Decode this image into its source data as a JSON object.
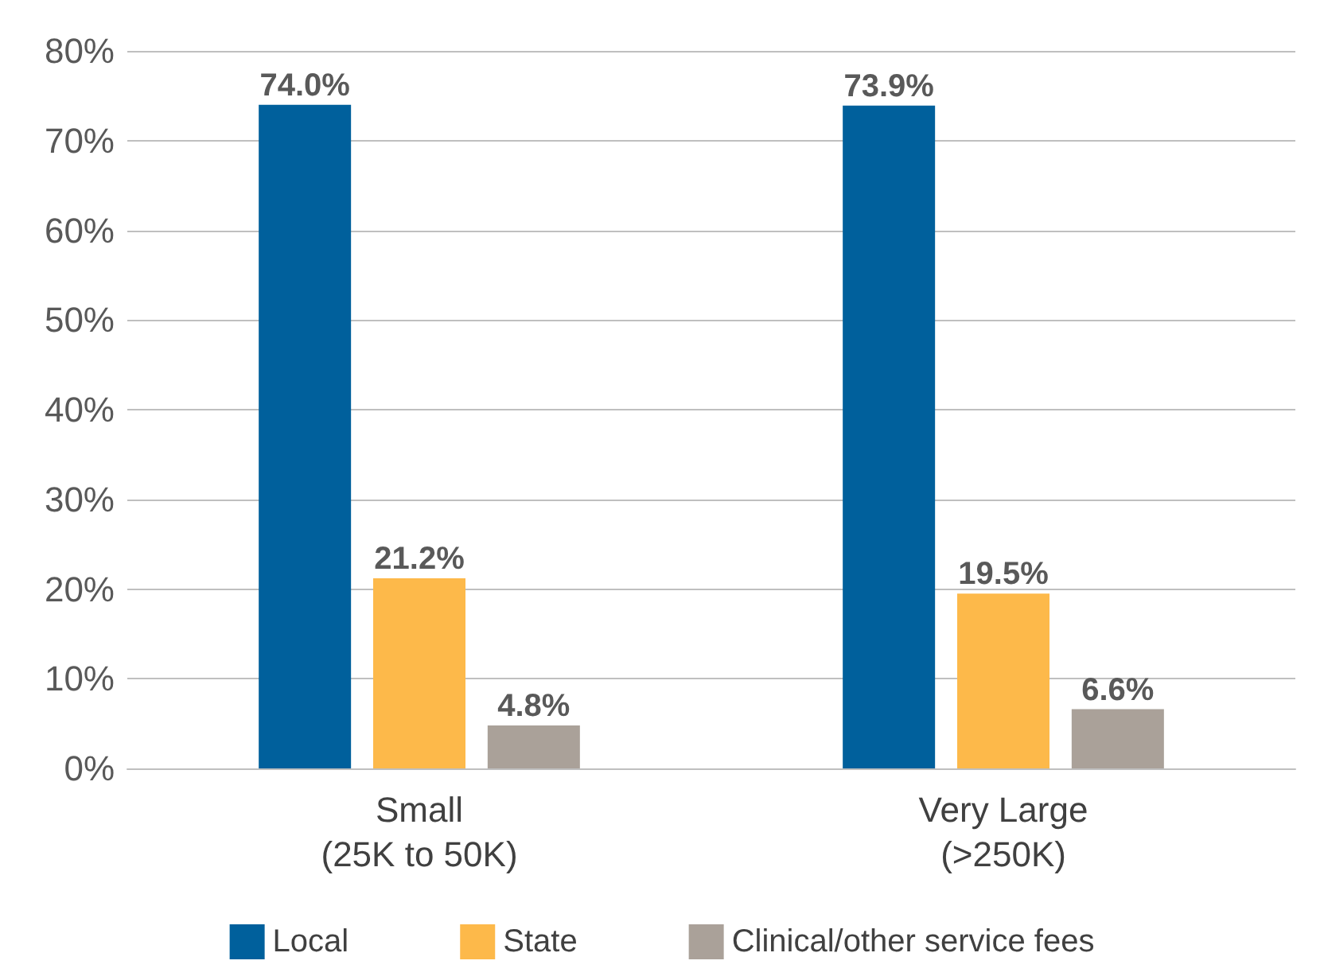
{
  "chart_data": {
    "type": "bar",
    "categories": [
      "Small\n(25K to 50K)",
      "Very Large\n(>250K)"
    ],
    "series": [
      {
        "name": "Local",
        "color": "#00609c",
        "values": [
          74.0,
          73.9
        ],
        "value_labels": [
          "74.0%",
          "73.9%"
        ]
      },
      {
        "name": "State",
        "color": "#fdb94a",
        "values": [
          21.2,
          19.5
        ],
        "value_labels": [
          "21.2%",
          "19.5%"
        ]
      },
      {
        "name": "Clinical/other service fees",
        "color": "#aaa199",
        "values": [
          4.8,
          6.6
        ],
        "value_labels": [
          "4.8%",
          "6.6%"
        ]
      }
    ],
    "ylim": [
      0,
      80
    ],
    "yticks": [
      {
        "value": 0,
        "label": "0%"
      },
      {
        "value": 10,
        "label": "10%"
      },
      {
        "value": 20,
        "label": "20%"
      },
      {
        "value": 30,
        "label": "30%"
      },
      {
        "value": 40,
        "label": "40%"
      },
      {
        "value": 50,
        "label": "50%"
      },
      {
        "value": 60,
        "label": "60%"
      },
      {
        "value": 70,
        "label": "70%"
      },
      {
        "value": 80,
        "label": "80%"
      }
    ],
    "grid": "y",
    "legend": "bottom"
  }
}
